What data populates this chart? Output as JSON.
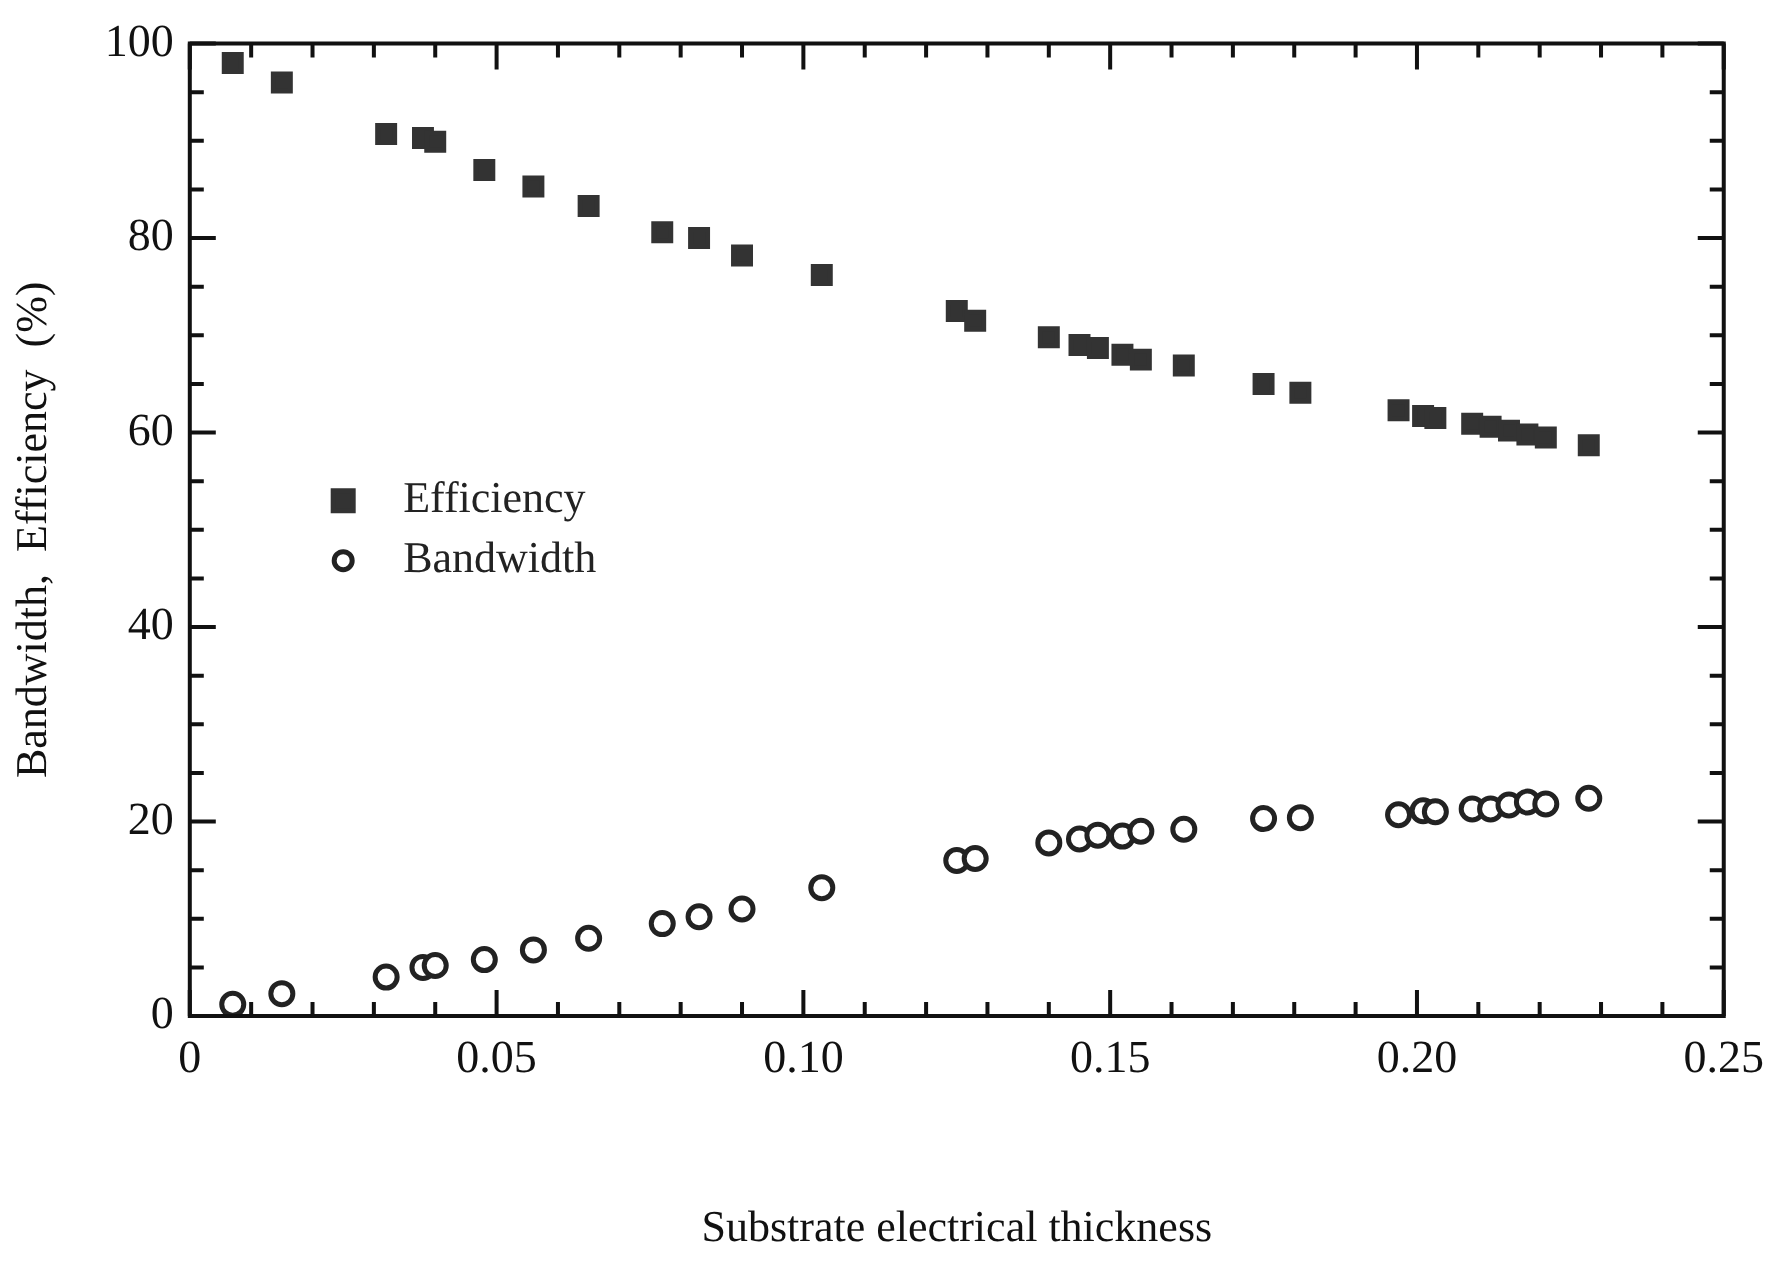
{
  "chart_data": {
    "type": "scatter",
    "xlabel": "Substrate electrical thickness",
    "ylabel": "Bandwidth,  Efficiency  (%)",
    "x": [
      0.007,
      0.015,
      0.032,
      0.038,
      0.04,
      0.048,
      0.056,
      0.065,
      0.077,
      0.083,
      0.09,
      0.103,
      0.125,
      0.128,
      0.14,
      0.145,
      0.148,
      0.152,
      0.155,
      0.162,
      0.175,
      0.181,
      0.197,
      0.201,
      0.203,
      0.209,
      0.212,
      0.215,
      0.218,
      0.221,
      0.228
    ],
    "series": [
      {
        "name": "Efficiency",
        "color": "#333333",
        "marker": "square",
        "values": [
          98,
          96,
          90.7,
          90.3,
          89.9,
          87,
          85.3,
          83.3,
          80.6,
          80,
          78.2,
          76.2,
          72.5,
          71.5,
          69.8,
          69,
          68.7,
          68,
          67.5,
          66.9,
          65,
          64.1,
          62.3,
          61.7,
          61.5,
          60.9,
          60.6,
          60.2,
          59.8,
          59.5,
          58.7
        ]
      },
      {
        "name": "Bandwidth",
        "color": "#222222",
        "marker": "circle",
        "values": [
          1.2,
          2.3,
          4,
          5,
          5.2,
          5.8,
          6.8,
          8,
          9.5,
          10.2,
          11,
          13.2,
          16,
          16.2,
          17.8,
          18.2,
          18.6,
          18.5,
          19,
          19.2,
          20.3,
          20.4,
          20.7,
          21.1,
          21,
          21.3,
          21.3,
          21.7,
          22,
          21.8,
          22.4
        ]
      }
    ],
    "xlim": [
      0,
      0.25
    ],
    "xticks": [
      0,
      {
        "value": 0.01,
        "label": null
      },
      {
        "value": 0.02,
        "label": null
      },
      {
        "value": 0.03,
        "label": null
      },
      {
        "value": 0.04,
        "label": null
      },
      0.05,
      {
        "value": 0.06,
        "label": null
      },
      {
        "value": 0.07,
        "label": null
      },
      {
        "value": 0.08,
        "label": null
      },
      {
        "value": 0.09,
        "label": null
      },
      {
        "value": 0.1,
        "label": "0.10"
      },
      {
        "value": 0.11,
        "label": null
      },
      {
        "value": 0.12,
        "label": null
      },
      {
        "value": 0.13,
        "label": null
      },
      {
        "value": 0.14,
        "label": null
      },
      0.15,
      {
        "value": 0.16,
        "label": null
      },
      {
        "value": 0.17,
        "label": null
      },
      {
        "value": 0.18,
        "label": null
      },
      {
        "value": 0.19,
        "label": null
      },
      {
        "value": 0.2,
        "label": "0.20"
      },
      {
        "value": 0.21,
        "label": null
      },
      {
        "value": 0.22,
        "label": null
      },
      {
        "value": 0.23,
        "label": null
      },
      {
        "value": 0.24,
        "label": null
      },
      0.25
    ],
    "ylim": [
      0,
      100
    ],
    "yticks": [
      0,
      {
        "value": 5,
        "label": null
      },
      {
        "value": 10,
        "label": null
      },
      {
        "value": 15,
        "label": null
      },
      20,
      {
        "value": 25,
        "label": null
      },
      {
        "value": 30,
        "label": null
      },
      {
        "value": 35,
        "label": null
      },
      40,
      {
        "value": 45,
        "label": null
      },
      {
        "value": 50,
        "label": null
      },
      {
        "value": 55,
        "label": null
      },
      60,
      {
        "value": 65,
        "label": null
      },
      {
        "value": 70,
        "label": null
      },
      {
        "value": 75,
        "label": null
      },
      80,
      {
        "value": 85,
        "label": null
      },
      {
        "value": 90,
        "label": null
      },
      {
        "value": 95,
        "label": null
      },
      100
    ],
    "grid": false,
    "legend": "left"
  }
}
